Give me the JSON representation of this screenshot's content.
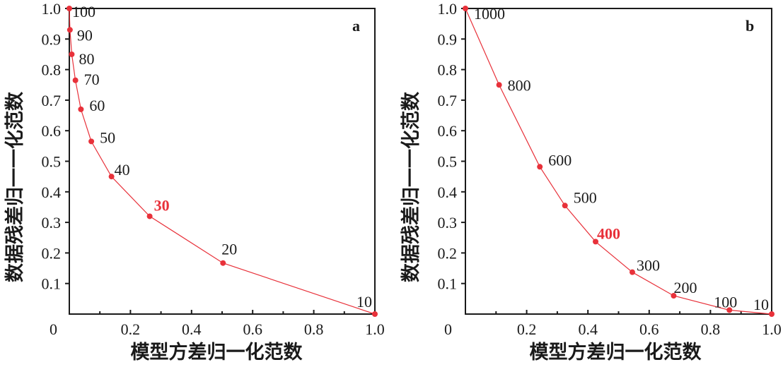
{
  "colors": {
    "series": "#e8313a",
    "axis": "#1a1a1a",
    "highlight": "#e8313a"
  },
  "chart_data": [
    {
      "type": "line",
      "panel": "a",
      "xlabel": "模型方差归一化范数",
      "ylabel": "数据残差归一一化范数",
      "xlim": [
        0,
        1.0
      ],
      "ylim": [
        0,
        1.0
      ],
      "x_ticks": [
        0.2,
        0.4,
        0.6,
        0.8,
        1.0
      ],
      "x_tick_labels": [
        "0.2",
        "0.4",
        "0.6",
        "0.8",
        "1.0"
      ],
      "y_ticks": [
        0.1,
        0.2,
        0.3,
        0.4,
        0.5,
        0.6,
        0.7,
        0.8,
        0.9,
        1.0
      ],
      "y_tick_labels": [
        "0.1",
        "0.2",
        "0.3",
        "0.4",
        "0.5",
        "0.6",
        "0.7",
        "0.8",
        "0.9",
        "1.0"
      ],
      "origin_label": "0",
      "grid": false,
      "highlight_label": "30",
      "points": [
        {
          "x": 0.0,
          "y": 1.0,
          "label": "100"
        },
        {
          "x": 0.002,
          "y": 0.93,
          "label": "90"
        },
        {
          "x": 0.008,
          "y": 0.85,
          "label": "80"
        },
        {
          "x": 0.02,
          "y": 0.765,
          "label": "70"
        },
        {
          "x": 0.038,
          "y": 0.67,
          "label": "60"
        },
        {
          "x": 0.072,
          "y": 0.565,
          "label": "50"
        },
        {
          "x": 0.138,
          "y": 0.45,
          "label": "40"
        },
        {
          "x": 0.263,
          "y": 0.32,
          "label": "30"
        },
        {
          "x": 0.503,
          "y": 0.167,
          "label": "20"
        },
        {
          "x": 1.0,
          "y": 0.0,
          "label": "10"
        }
      ]
    },
    {
      "type": "line",
      "panel": "b",
      "xlabel": "模型方差归一化范数",
      "ylabel": "数据残差归一一化范数",
      "xlim": [
        0,
        1.0
      ],
      "ylim": [
        0,
        1.0
      ],
      "x_ticks": [
        0.2,
        0.4,
        0.6,
        0.8,
        1.0
      ],
      "x_tick_labels": [
        "0.2",
        "0.4",
        "0.6",
        "0.8",
        "1.0"
      ],
      "y_ticks": [
        0.1,
        0.2,
        0.3,
        0.4,
        0.5,
        0.6,
        0.7,
        0.8,
        0.9,
        1.0
      ],
      "y_tick_labels": [
        "0.1",
        "0.2",
        "0.3",
        "0.4",
        "0.5",
        "0.6",
        "0.7",
        "0.8",
        "0.9",
        "1.0"
      ],
      "origin_label": "0",
      "grid": false,
      "highlight_label": "400",
      "points": [
        {
          "x": 0.0,
          "y": 1.0,
          "label": "1000"
        },
        {
          "x": 0.11,
          "y": 0.75,
          "label": "800"
        },
        {
          "x": 0.243,
          "y": 0.482,
          "label": "600"
        },
        {
          "x": 0.325,
          "y": 0.355,
          "label": "500"
        },
        {
          "x": 0.425,
          "y": 0.237,
          "label": "400"
        },
        {
          "x": 0.545,
          "y": 0.137,
          "label": "300"
        },
        {
          "x": 0.68,
          "y": 0.06,
          "label": "200"
        },
        {
          "x": 0.862,
          "y": 0.013,
          "label": "100"
        },
        {
          "x": 1.0,
          "y": 0.0,
          "label": "10"
        }
      ]
    }
  ]
}
